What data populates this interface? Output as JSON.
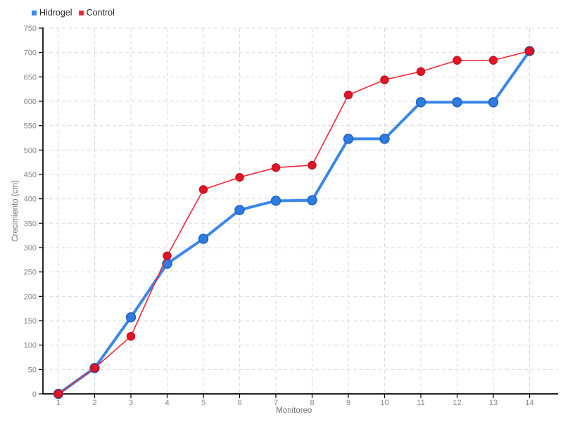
{
  "chart_data": {
    "type": "line",
    "x": [
      1,
      2,
      3,
      4,
      5,
      6,
      7,
      8,
      9,
      10,
      11,
      12,
      13,
      14
    ],
    "series": [
      {
        "name": "Hidrogel",
        "values": [
          0,
          53,
          157,
          267,
          318,
          377,
          396,
          397,
          523,
          523,
          598,
          598,
          598,
          703
        ],
        "color": "#3a87e9",
        "marker_color": "#2e7ce0",
        "marker_stroke": "#1c5fc2",
        "line_width": 4,
        "marker_radius": 6.5
      },
      {
        "name": "Control",
        "values": [
          0,
          53,
          118,
          283,
          419,
          444,
          464,
          469,
          613,
          644,
          661,
          684,
          684,
          703
        ],
        "color": "#ef2837",
        "marker_color": "#e21426",
        "marker_stroke": "#c50f1f",
        "line_width": 1.6,
        "marker_radius": 5.5
      }
    ],
    "title": "",
    "xlabel": "Monitoreo",
    "ylabel": "Crecimiento (cm)",
    "ylim": [
      0,
      750
    ],
    "ytick_step": 50,
    "xtick_labels": [
      "1",
      "2",
      "3",
      "4",
      "5",
      "6",
      "7",
      "8",
      "9",
      "10",
      "11",
      "12",
      "13",
      "14"
    ],
    "grid": "dashed",
    "legend_position": "top-left",
    "colors": {
      "background": "#ffffff",
      "grid": "#d9d9d9",
      "axis": "#000000",
      "tick_label": "#858585",
      "axis_title": "#6f6f6f",
      "legend_text": "#2b2b2b"
    }
  }
}
